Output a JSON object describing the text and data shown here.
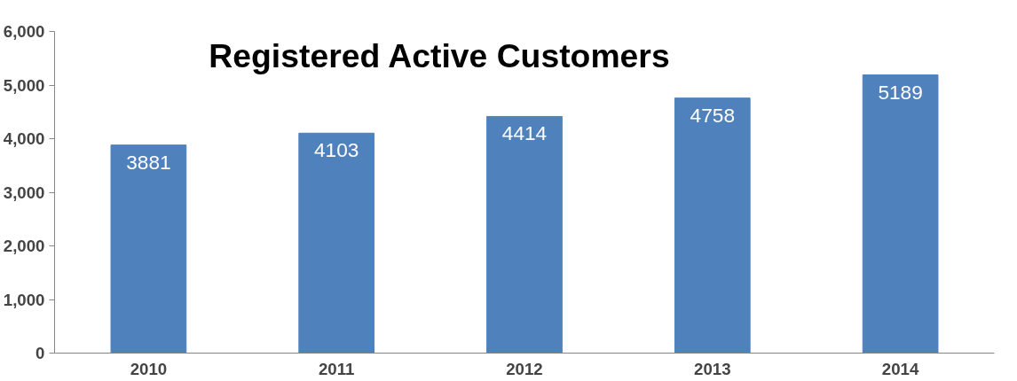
{
  "chart_data": {
    "type": "bar",
    "title": "Registered Active Customers",
    "categories": [
      "2010",
      "2011",
      "2012",
      "2013",
      "2014"
    ],
    "values": [
      3881,
      4103,
      4414,
      4758,
      5189
    ],
    "color": "#4f81bd",
    "ylim": [
      0,
      6000
    ],
    "yticks": [
      0,
      {
        "value": 1000,
        "label": "1,000"
      },
      {
        "value": 2000,
        "label": "2,000"
      },
      {
        "value": 3000,
        "label": "3,000"
      },
      {
        "value": 4000,
        "label": "4,000"
      },
      {
        "value": 5000,
        "label": "5,000"
      },
      {
        "value": 6000,
        "label": "6,000"
      }
    ],
    "data_labels": true,
    "grid": false
  }
}
